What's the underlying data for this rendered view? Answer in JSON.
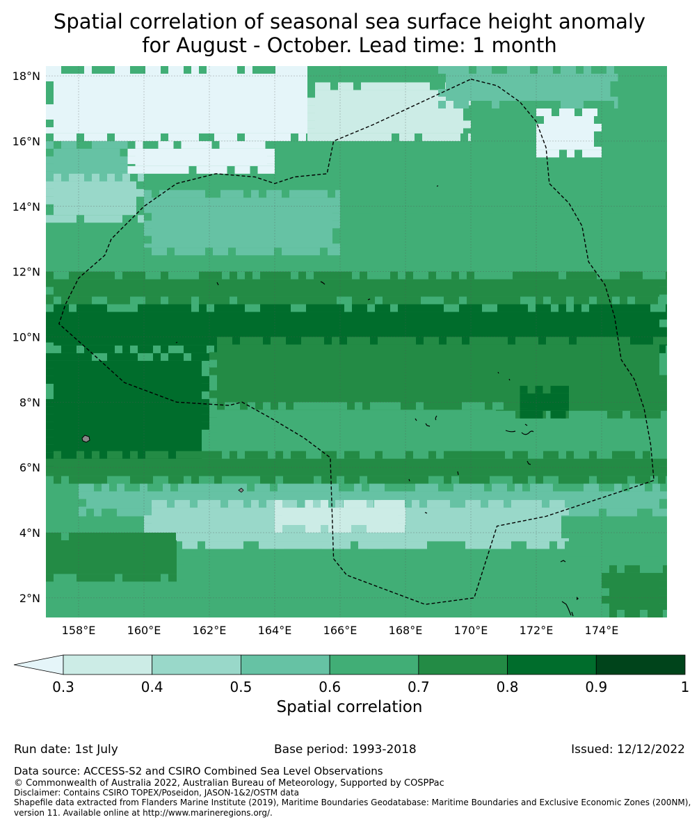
{
  "title": {
    "line1": "Spatial correlation of seasonal sea surface height anomaly",
    "line2": "for August - October. Lead time: 1 month"
  },
  "chart_data": {
    "type": "heatmap",
    "title": "Spatial correlation of seasonal sea surface height anomaly for August - October. Lead time: 1 month",
    "variable": "Spatial correlation",
    "lon_range": [
      157,
      176
    ],
    "lat_range": [
      1.4,
      18.3
    ],
    "x_ticks": [
      "158°E",
      "160°E",
      "162°E",
      "164°E",
      "166°E",
      "168°E",
      "170°E",
      "172°E",
      "174°E"
    ],
    "x_tick_values": [
      158,
      160,
      162,
      164,
      166,
      168,
      170,
      172,
      174
    ],
    "y_ticks": [
      "18°N",
      "16°N",
      "14°N",
      "12°N",
      "10°N",
      "8°N",
      "6°N",
      "4°N",
      "2°N"
    ],
    "y_tick_values": [
      18,
      16,
      14,
      12,
      10,
      8,
      6,
      4,
      2
    ],
    "colorbar": {
      "boundaries": [
        0.3,
        0.4,
        0.5,
        0.6,
        0.7,
        0.8,
        0.9,
        1
      ],
      "tick_labels": [
        "0.3",
        "0.4",
        "0.5",
        "0.6",
        "0.7",
        "0.8",
        "0.9",
        "1"
      ],
      "colors": [
        "#ccece6",
        "#99d8c9",
        "#66c2a4",
        "#41ae76",
        "#238b45",
        "#006d2c",
        "#00441b"
      ],
      "under_color": "#e5f5f9",
      "extend": "min"
    },
    "regions": [
      {
        "lat": [
          16.0,
          18.3
        ],
        "lon": [
          157,
          165
        ],
        "value": 0.25
      },
      {
        "lat": [
          15.0,
          16.0
        ],
        "lon": [
          159.5,
          164
        ],
        "value": 0.25
      },
      {
        "lat": [
          16.0,
          17.8
        ],
        "lon": [
          165,
          170
        ],
        "value": 0.35
      },
      {
        "lat": [
          17.0,
          18.3
        ],
        "lon": [
          169,
          174.5
        ],
        "value": 0.55
      },
      {
        "lat": [
          15.5,
          17.0
        ],
        "lon": [
          172,
          174
        ],
        "value": 0.25
      },
      {
        "lat": [
          14.5,
          16.0
        ],
        "lon": [
          157,
          159.5
        ],
        "value": 0.55
      },
      {
        "lat": [
          13.5,
          15.0
        ],
        "lon": [
          157,
          160
        ],
        "value": 0.45
      },
      {
        "lat": [
          12.5,
          14.5
        ],
        "lon": [
          160,
          166
        ],
        "value": 0.55
      },
      {
        "lat": [
          12.0,
          14.0
        ],
        "lon": [
          166,
          176
        ],
        "value": 0.65
      },
      {
        "lat": [
          11.0,
          12.0
        ],
        "lon": [
          157,
          176
        ],
        "value": 0.75
      },
      {
        "lat": [
          9.5,
          11.0
        ],
        "lon": [
          157,
          176
        ],
        "value": 0.85
      },
      {
        "lat": [
          6.0,
          9.5
        ],
        "lon": [
          157,
          162
        ],
        "value": 0.85
      },
      {
        "lat": [
          7.5,
          10.0
        ],
        "lon": [
          162,
          176
        ],
        "value": 0.75
      },
      {
        "lat": [
          7.5,
          8.5
        ],
        "lon": [
          171.5,
          173
        ],
        "value": 0.85
      },
      {
        "lat": [
          6.0,
          8.0
        ],
        "lon": [
          162,
          171
        ],
        "value": 0.65
      },
      {
        "lat": [
          5.5,
          6.5
        ],
        "lon": [
          157,
          176
        ],
        "value": 0.75
      },
      {
        "lat": [
          4.5,
          5.5
        ],
        "lon": [
          158,
          176
        ],
        "value": 0.55
      },
      {
        "lat": [
          3.5,
          5.0
        ],
        "lon": [
          160,
          173
        ],
        "value": 0.45
      },
      {
        "lat": [
          4.0,
          5.0
        ],
        "lon": [
          164,
          168
        ],
        "value": 0.35
      },
      {
        "lat": [
          2.5,
          4.0
        ],
        "lon": [
          157,
          161
        ],
        "value": 0.75
      },
      {
        "lat": [
          2.0,
          3.5
        ],
        "lon": [
          161,
          176
        ],
        "value": 0.65
      },
      {
        "lat": [
          1.4,
          3.0
        ],
        "lon": [
          174,
          176
        ],
        "value": 0.75
      }
    ],
    "eez_boundary": [
      [
        170.0,
        17.9
      ],
      [
        170.8,
        17.7
      ],
      [
        171.5,
        17.2
      ],
      [
        172.0,
        16.6
      ],
      [
        172.3,
        15.8
      ],
      [
        172.4,
        14.7
      ],
      [
        173.0,
        14.1
      ],
      [
        173.4,
        13.4
      ],
      [
        173.6,
        12.3
      ],
      [
        174.1,
        11.6
      ],
      [
        174.4,
        10.6
      ],
      [
        174.6,
        9.3
      ],
      [
        175.0,
        8.7
      ],
      [
        175.3,
        7.8
      ],
      [
        175.5,
        6.7
      ],
      [
        175.6,
        5.6
      ],
      [
        174.1,
        5.1
      ],
      [
        172.3,
        4.5
      ],
      [
        170.8,
        4.2
      ],
      [
        170.1,
        2.0
      ],
      [
        168.6,
        1.8
      ],
      [
        166.2,
        2.7
      ],
      [
        165.8,
        3.2
      ],
      [
        165.7,
        6.3
      ],
      [
        164.9,
        6.9
      ],
      [
        163.9,
        7.5
      ],
      [
        163.0,
        8.0
      ],
      [
        162.6,
        7.9
      ],
      [
        161.0,
        8.0
      ],
      [
        159.4,
        8.6
      ],
      [
        158.3,
        9.6
      ],
      [
        157.4,
        10.4
      ],
      [
        157.6,
        11.0
      ],
      [
        158.0,
        11.8
      ],
      [
        158.8,
        12.5
      ],
      [
        159.0,
        13.0
      ],
      [
        160.0,
        14.0
      ],
      [
        161.0,
        14.7
      ],
      [
        162.2,
        15.0
      ],
      [
        163.4,
        14.9
      ],
      [
        164.0,
        14.7
      ],
      [
        164.6,
        14.9
      ],
      [
        165.6,
        15.0
      ],
      [
        165.8,
        16.0
      ],
      [
        167.0,
        16.5
      ],
      [
        168.5,
        17.2
      ]
    ]
  },
  "colorbar_label": "Spatial correlation",
  "footer": {
    "run_date": "Run date: 1st July",
    "base_period": "Base period: 1993-2018",
    "issued": "Issued: 12/12/2022",
    "data_source": "Data source: ACCESS-S2 and CSIRO Combined Sea Level Observations",
    "copyright": "© Commonwealth of Australia 2022, Australian Bureau of Meteorology, Supported by COSPPac",
    "disclaimer": "Disclaimer: Contains CSIRO TOPEX/Poseidon, JASON-1&2/OSTM data",
    "shapefile_1": "Shapefile data extracted from Flanders Marine Institute (2019), Maritime Boundaries Geodatabase: Maritime Boundaries and Exclusive Economic Zones (200NM),",
    "shapefile_2": "version 11. Available online at http://www.marineregions.org/."
  }
}
